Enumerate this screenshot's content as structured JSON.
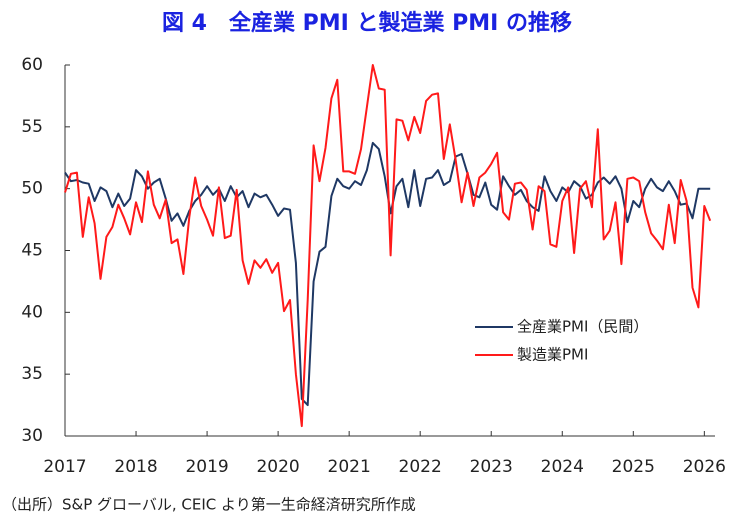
{
  "chart_data": {
    "type": "line",
    "title": "図 4　全産業 PMI と製造業 PMI の推移",
    "source": "（出所）S&P グローバル, CEIC より第一生命経済研究所作成",
    "x": [
      2017,
      2017.083,
      2017.167,
      2017.25,
      2017.333,
      2017.417,
      2017.5,
      2017.583,
      2017.667,
      2017.75,
      2017.833,
      2017.917,
      2018,
      2018.083,
      2018.167,
      2018.25,
      2018.333,
      2018.417,
      2018.5,
      2018.583,
      2018.667,
      2018.75,
      2018.833,
      2018.917,
      2019,
      2019.083,
      2019.167,
      2019.25,
      2019.333,
      2019.417,
      2019.5,
      2019.583,
      2019.667,
      2019.75,
      2019.833,
      2019.917,
      2020,
      2020.083,
      2020.167,
      2020.25,
      2020.333,
      2020.417,
      2020.5,
      2020.583,
      2020.667,
      2020.75,
      2020.833,
      2020.917,
      2021,
      2021.083,
      2021.167,
      2021.25,
      2021.333,
      2021.417,
      2021.5,
      2021.583,
      2021.667,
      2021.75,
      2021.833,
      2021.917,
      2022,
      2022.083,
      2022.167,
      2022.25,
      2022.333,
      2022.417,
      2022.5,
      2022.583,
      2022.667,
      2022.75,
      2022.833,
      2022.917,
      2023,
      2023.083,
      2023.167,
      2023.25,
      2023.333,
      2023.417,
      2023.5,
      2023.583,
      2023.667,
      2023.75,
      2023.833,
      2023.917,
      2024,
      2024.083,
      2024.167,
      2024.25,
      2024.333,
      2024.417,
      2024.5,
      2024.583,
      2024.667,
      2024.75,
      2024.833,
      2024.917,
      2025,
      2025.083,
      2025.167,
      2025.25,
      2025.333,
      2025.417,
      2025.5,
      2025.583,
      2025.667,
      2025.75,
      2025.833,
      2025.917,
      2026,
      2026.083
    ],
    "series": [
      {
        "name": "全産業PMI（民間）",
        "color": "#1f3864",
        "values": [
          51.3,
          50.6,
          50.7,
          50.5,
          50.4,
          49.0,
          50.1,
          49.8,
          48.5,
          49.6,
          48.6,
          49.2,
          51.5,
          51.0,
          50.0,
          50.5,
          50.8,
          49.2,
          47.4,
          48.0,
          47.0,
          48.2,
          49.0,
          49.5,
          50.2,
          49.5,
          50.0,
          49.0,
          50.2,
          49.3,
          49.8,
          48.5,
          49.6,
          49.3,
          49.5,
          48.7,
          47.8,
          48.4,
          48.3,
          44.0,
          33.0,
          32.5,
          42.5,
          44.9,
          45.3,
          49.4,
          50.8,
          50.2,
          50.0,
          50.6,
          50.3,
          51.5,
          53.7,
          53.2,
          51.0,
          48.0,
          50.2,
          50.8,
          48.5,
          51.5,
          48.6,
          50.8,
          50.9,
          51.5,
          50.3,
          50.6,
          52.6,
          52.8,
          51.2,
          49.5,
          49.3,
          50.5,
          48.7,
          48.3,
          51.0,
          50.2,
          49.5,
          49.9,
          49.0,
          48.5,
          48.2,
          51.0,
          49.8,
          49.0,
          50.1,
          49.7,
          50.6,
          50.2,
          49.2,
          49.5,
          50.5,
          50.9,
          50.4,
          51.0,
          50.0,
          47.3,
          49.0,
          48.5,
          50.0,
          50.8,
          50.1,
          49.8,
          50.6,
          49.8,
          48.7,
          48.8,
          47.6,
          50.0,
          50.0,
          50.0
        ]
      },
      {
        "name": "製造業PMI",
        "color": "#ff1a1a",
        "values": [
          49.7,
          51.2,
          51.3,
          46.1,
          49.3,
          47.2,
          42.7,
          46.1,
          46.9,
          48.7,
          47.6,
          46.3,
          48.9,
          47.3,
          51.4,
          48.7,
          47.6,
          49.1,
          45.6,
          45.9,
          43.1,
          47.7,
          50.9,
          48.6,
          47.5,
          46.2,
          50.1,
          46.0,
          46.2,
          49.9,
          44.2,
          42.3,
          44.2,
          43.6,
          44.3,
          43.2,
          44.0,
          40.1,
          41.0,
          35.0,
          30.8,
          41.0,
          53.5,
          50.6,
          53.3,
          57.3,
          58.8,
          51.4,
          51.4,
          51.2,
          53.2,
          56.6,
          60.0,
          58.1,
          58.0,
          44.6,
          55.6,
          55.5,
          53.9,
          55.8,
          54.5,
          57.1,
          57.6,
          57.7,
          52.4,
          55.2,
          52.3,
          48.9,
          51.3,
          48.6,
          50.9,
          51.3,
          52.0,
          52.9,
          48.1,
          47.5,
          50.4,
          50.5,
          49.9,
          46.7,
          50.2,
          49.8,
          45.5,
          45.3,
          49.0,
          50.1,
          44.8,
          50.0,
          50.6,
          48.5,
          54.8,
          45.9,
          46.6,
          48.9,
          43.9,
          50.8,
          50.9,
          50.6,
          48.1,
          46.4,
          45.8,
          45.1,
          48.7,
          45.6,
          50.7,
          49.0,
          42.0,
          40.4,
          48.6,
          47.4
        ]
      }
    ],
    "xlim": [
      2017,
      2026.15
    ],
    "xticks": [
      2017,
      2018,
      2019,
      2020,
      2021,
      2022,
      2023,
      2024,
      2025,
      2026
    ],
    "ylim": [
      30,
      60
    ],
    "yticks": [
      30,
      35,
      40,
      45,
      50,
      55,
      60
    ],
    "grid": false,
    "legend": "lower right"
  }
}
